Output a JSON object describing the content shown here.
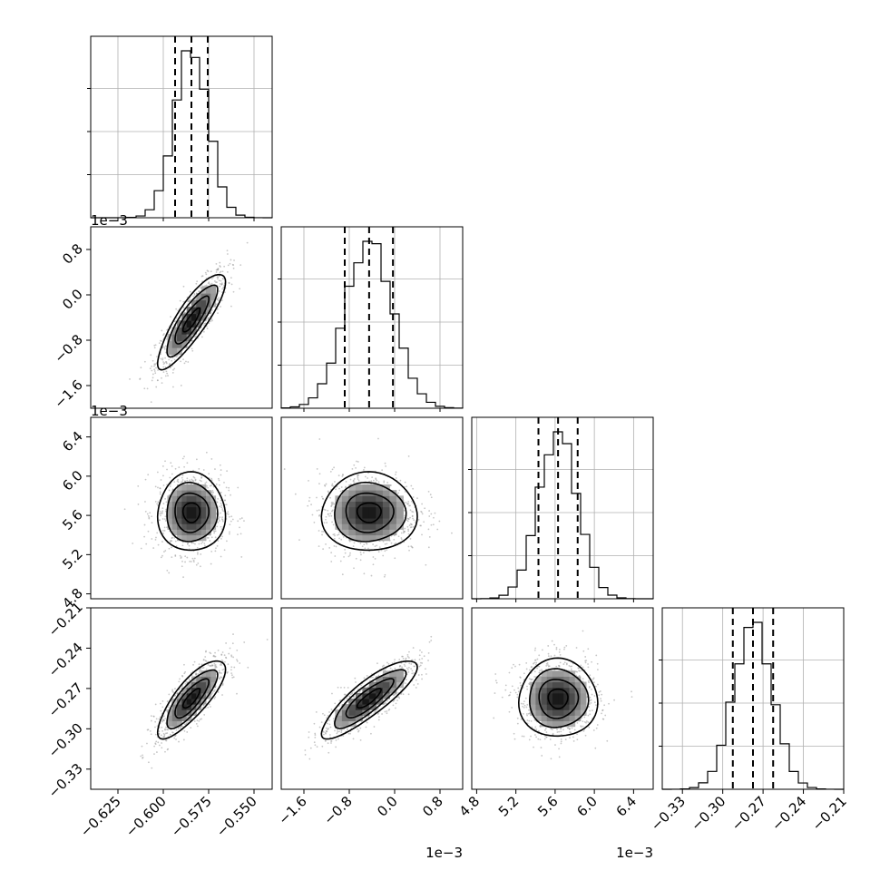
{
  "chart_data": {
    "type": "corner",
    "params": [
      {
        "range": [
          -0.64,
          -0.54
        ],
        "ticks": [
          "-0.625",
          "-0.600",
          "-0.575",
          "-0.550"
        ],
        "tick_values": [
          -0.625,
          -0.6,
          -0.575,
          -0.55
        ],
        "mean": -0.5845,
        "std": 0.0093,
        "q16": -0.5935,
        "q50": -0.5845,
        "q84": -0.5755,
        "offset": ""
      },
      {
        "range": [
          -2.0,
          1.2
        ],
        "ticks": [
          "-1.6",
          "-0.8",
          "0.0",
          "0.8"
        ],
        "tick_values": [
          -1.6,
          -0.8,
          0.0,
          0.8
        ],
        "mean": -0.45,
        "std": 0.42,
        "q16": -0.88,
        "q50": -0.45,
        "q84": -0.03,
        "offset": "1e−3"
      },
      {
        "range": [
          4.75,
          6.6
        ],
        "ticks": [
          "4.8",
          "5.2",
          "5.6",
          "6.0",
          "6.4"
        ],
        "tick_values": [
          4.8,
          5.2,
          5.6,
          6.0,
          6.4
        ],
        "mean": 5.63,
        "std": 0.2,
        "q16": 5.43,
        "q50": 5.63,
        "q84": 5.83,
        "offset": "1e−3"
      },
      {
        "range": [
          -0.345,
          -0.21
        ],
        "ticks": [
          "-0.33",
          "-0.30",
          "-0.27",
          "-0.24",
          "-0.21"
        ],
        "tick_values": [
          -0.33,
          -0.3,
          -0.27,
          -0.24,
          -0.21
        ],
        "mean": -0.2775,
        "std": 0.0145,
        "q16": -0.2925,
        "q50": -0.2775,
        "q84": -0.2625,
        "offset": ""
      }
    ],
    "correlations": [
      [
        0,
        1,
        0.85
      ],
      [
        0,
        2,
        0.0
      ],
      [
        1,
        2,
        0.0
      ],
      [
        0,
        3,
        0.8
      ],
      [
        1,
        3,
        0.85
      ],
      [
        2,
        3,
        0.0
      ]
    ],
    "x_offset_labels": [
      "",
      "1e−3",
      "1e−3",
      ""
    ],
    "y_offset_labels": [
      "",
      "1e−3",
      "1e−3",
      ""
    ],
    "grid": true,
    "quantile_lines": "dashed"
  }
}
